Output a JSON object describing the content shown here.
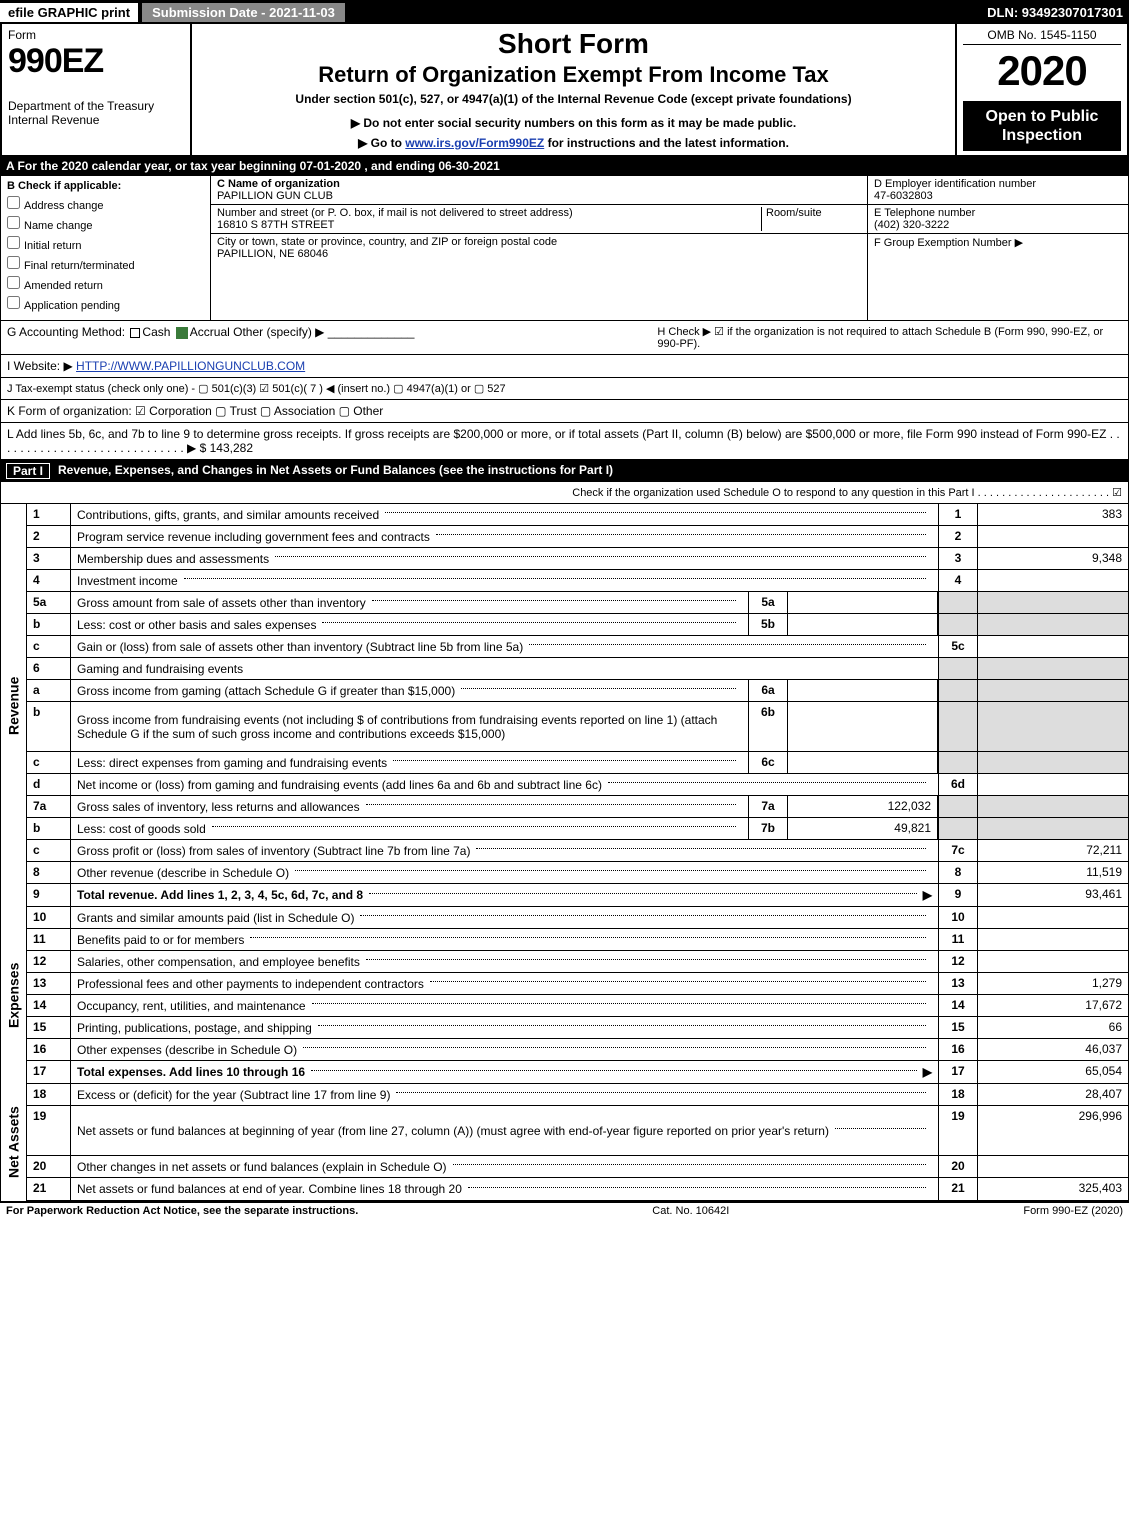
{
  "topbar": {
    "efile": "efile GRAPHIC print",
    "subdate": "Submission Date - 2021-11-03",
    "dln": "DLN: 93492307017301"
  },
  "header": {
    "form_label": "Form",
    "form_code": "990EZ",
    "dept": "Department of the Treasury\nInternal Revenue",
    "short": "Short Form",
    "title": "Return of Organization Exempt From Income Tax",
    "subtitle": "Under section 501(c), 527, or 4947(a)(1) of the Internal Revenue Code (except private foundations)",
    "note": "▶ Do not enter social security numbers on this form as it may be made public.",
    "link_pre": "▶ Go to ",
    "link_text": "www.irs.gov/Form990EZ",
    "link_post": " for instructions and the latest information.",
    "omb": "OMB No. 1545-1150",
    "year": "2020",
    "inspect": "Open to Public Inspection"
  },
  "rowA": "A   For the 2020 calendar year, or tax year beginning 07-01-2020 , and ending 06-30-2021",
  "colB": {
    "head": "B  Check if applicable:",
    "opts": [
      "Address change",
      "Name change",
      "Initial return",
      "Final return/terminated",
      "Amended return",
      "Application pending"
    ]
  },
  "colC": {
    "name_lbl": "C Name of organization",
    "name": "PAPILLION GUN CLUB",
    "addr_lbl": "Number and street (or P. O. box, if mail is not delivered to street address)",
    "room_lbl": "Room/suite",
    "addr": "16810 S 87TH STREET",
    "city_lbl": "City or town, state or province, country, and ZIP or foreign postal code",
    "city": "PAPILLION, NE  68046"
  },
  "colD": {
    "ein_lbl": "D Employer identification number",
    "ein": "47-6032803",
    "tel_lbl": "E Telephone number",
    "tel": "(402) 320-3222",
    "grp_lbl": "F Group Exemption Number   ▶"
  },
  "lineG": {
    "lbl": "G Accounting Method:",
    "cash": "Cash",
    "accrual": "Accrual",
    "other": "Other (specify) ▶"
  },
  "lineH": "H  Check ▶  ☑  if the organization is not required to attach Schedule B (Form 990, 990-EZ, or 990-PF).",
  "lineI": {
    "lbl": "I Website: ▶",
    "val": "HTTP://WWW.PAPILLIONGUNCLUB.COM"
  },
  "lineJ": "J Tax-exempt status (check only one) -  ▢ 501(c)(3)  ☑ 501(c)( 7 ) ◀ (insert no.)  ▢ 4947(a)(1) or  ▢ 527",
  "lineK": "K Form of organization:  ☑ Corporation   ▢ Trust   ▢ Association   ▢ Other",
  "lineL": {
    "text": "L Add lines 5b, 6c, and 7b to line 9 to determine gross receipts. If gross receipts are $200,000 or more, or if total assets (Part II, column (B) below) are $500,000 or more, file Form 990 instead of Form 990-EZ  .  .  .  .  .  .  .  .  .  .  .  .  .  .  .  .  .  .  .  .  .  .  .  .  .  .  .  .  .  ▶ $",
    "val": "143,282"
  },
  "part1": {
    "num": "Part I",
    "title": "Revenue, Expenses, and Changes in Net Assets or Fund Balances (see the instructions for Part I)",
    "check_line": "Check if the organization used Schedule O to respond to any question in this Part I  .  .  .  .  .  .  .  .  .  .  .  .  .  .  .  .  .  .  .  .  .  .   ☑"
  },
  "sections": {
    "revenue": "Revenue",
    "expenses": "Expenses",
    "netassets": "Net Assets"
  },
  "rows": [
    {
      "ln": "1",
      "desc": "Contributions, gifts, grants, and similar amounts received",
      "num": "1",
      "val": "383"
    },
    {
      "ln": "2",
      "desc": "Program service revenue including government fees and contracts",
      "num": "2",
      "val": ""
    },
    {
      "ln": "3",
      "desc": "Membership dues and assessments",
      "num": "3",
      "val": "9,348"
    },
    {
      "ln": "4",
      "desc": "Investment income",
      "num": "4",
      "val": ""
    },
    {
      "ln": "5a",
      "desc": "Gross amount from sale of assets other than inventory",
      "sub": "5a",
      "subval": "",
      "shade_right": true
    },
    {
      "ln": "b",
      "desc": "Less: cost or other basis and sales expenses",
      "sub": "5b",
      "subval": "",
      "shade_right": true
    },
    {
      "ln": "c",
      "desc": "Gain or (loss) from sale of assets other than inventory (Subtract line 5b from line 5a)",
      "num": "5c",
      "val": ""
    },
    {
      "ln": "6",
      "desc": "Gaming and fundraising events",
      "shade_right": true,
      "noval": true
    },
    {
      "ln": "a",
      "desc": "Gross income from gaming (attach Schedule G if greater than $15,000)",
      "sub": "6a",
      "subval": "",
      "shade_right": true
    },
    {
      "ln": "b",
      "desc": "Gross income from fundraising events (not including $                  of contributions from fundraising events reported on line 1) (attach Schedule G if the sum of such gross income and contributions exceeds $15,000)",
      "sub": "6b",
      "subval": "",
      "shade_right": true,
      "tall": true
    },
    {
      "ln": "c",
      "desc": "Less: direct expenses from gaming and fundraising events",
      "sub": "6c",
      "subval": "",
      "shade_right": true
    },
    {
      "ln": "d",
      "desc": "Net income or (loss) from gaming and fundraising events (add lines 6a and 6b and subtract line 6c)",
      "num": "6d",
      "val": ""
    },
    {
      "ln": "7a",
      "desc": "Gross sales of inventory, less returns and allowances",
      "sub": "7a",
      "subval": "122,032",
      "shade_right": true
    },
    {
      "ln": "b",
      "desc": "Less: cost of goods sold",
      "sub": "7b",
      "subval": "49,821",
      "shade_right": true
    },
    {
      "ln": "c",
      "desc": "Gross profit or (loss) from sales of inventory (Subtract line 7b from line 7a)",
      "num": "7c",
      "val": "72,211"
    },
    {
      "ln": "8",
      "desc": "Other revenue (describe in Schedule O)",
      "num": "8",
      "val": "11,519"
    },
    {
      "ln": "9",
      "desc": "Total revenue. Add lines 1, 2, 3, 4, 5c, 6d, 7c, and 8",
      "num": "9",
      "val": "93,461",
      "bold": true,
      "arrow": true
    }
  ],
  "exp_rows": [
    {
      "ln": "10",
      "desc": "Grants and similar amounts paid (list in Schedule O)",
      "num": "10",
      "val": ""
    },
    {
      "ln": "11",
      "desc": "Benefits paid to or for members",
      "num": "11",
      "val": ""
    },
    {
      "ln": "12",
      "desc": "Salaries, other compensation, and employee benefits",
      "num": "12",
      "val": ""
    },
    {
      "ln": "13",
      "desc": "Professional fees and other payments to independent contractors",
      "num": "13",
      "val": "1,279"
    },
    {
      "ln": "14",
      "desc": "Occupancy, rent, utilities, and maintenance",
      "num": "14",
      "val": "17,672"
    },
    {
      "ln": "15",
      "desc": "Printing, publications, postage, and shipping",
      "num": "15",
      "val": "66"
    },
    {
      "ln": "16",
      "desc": "Other expenses (describe in Schedule O)",
      "num": "16",
      "val": "46,037"
    },
    {
      "ln": "17",
      "desc": "Total expenses. Add lines 10 through 16",
      "num": "17",
      "val": "65,054",
      "bold": true,
      "arrow": true
    }
  ],
  "na_rows": [
    {
      "ln": "18",
      "desc": "Excess or (deficit) for the year (Subtract line 17 from line 9)",
      "num": "18",
      "val": "28,407"
    },
    {
      "ln": "19",
      "desc": "Net assets or fund balances at beginning of year (from line 27, column (A)) (must agree with end-of-year figure reported on prior year's return)",
      "num": "19",
      "val": "296,996",
      "tall": true
    },
    {
      "ln": "20",
      "desc": "Other changes in net assets or fund balances (explain in Schedule O)",
      "num": "20",
      "val": ""
    },
    {
      "ln": "21",
      "desc": "Net assets or fund balances at end of year. Combine lines 18 through 20",
      "num": "21",
      "val": "325,403"
    }
  ],
  "footer": {
    "left": "For Paperwork Reduction Act Notice, see the separate instructions.",
    "mid": "Cat. No. 10642I",
    "right": "Form 990-EZ (2020)"
  }
}
